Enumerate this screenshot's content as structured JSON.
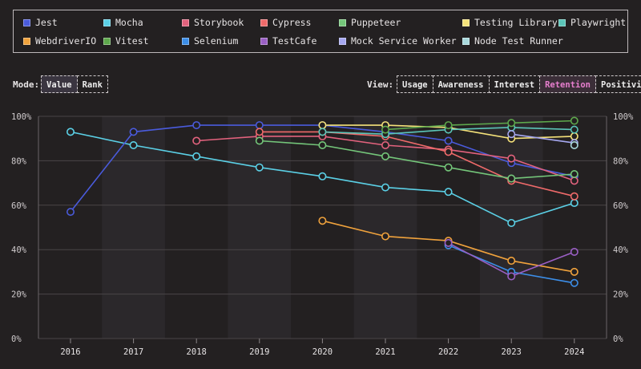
{
  "legend": [
    {
      "name": "Jest",
      "color": "#4a5bdc"
    },
    {
      "name": "Mocha",
      "color": "#5bd0e6"
    },
    {
      "name": "Storybook",
      "color": "#e2627d"
    },
    {
      "name": "Cypress",
      "color": "#ef6a6a"
    },
    {
      "name": "Puppeteer",
      "color": "#74c67a"
    },
    {
      "name": "Testing Library",
      "color": "#f5e27a"
    },
    {
      "name": "Playwright",
      "color": "#5bc5b8"
    },
    {
      "name": "WebdriverIO",
      "color": "#f0a23c"
    },
    {
      "name": "Vitest",
      "color": "#5ea84c"
    },
    {
      "name": "Selenium",
      "color": "#3c8ee8"
    },
    {
      "name": "TestCafe",
      "color": "#9a5fc4"
    },
    {
      "name": "Mock Service Worker",
      "color": "#a6a8f0"
    },
    {
      "name": "Node Test Runner",
      "color": "#a8d8dc"
    }
  ],
  "controls": {
    "mode_label": "Mode:",
    "mode_options": [
      "Value",
      "Rank"
    ],
    "mode_selected": "Value",
    "view_label": "View:",
    "view_options": [
      "Usage",
      "Awareness",
      "Interest",
      "Retention",
      "Positivity"
    ],
    "view_selected": "Retention"
  },
  "chart_data": {
    "type": "line",
    "x": [
      2016,
      2017,
      2018,
      2019,
      2020,
      2021,
      2022,
      2023,
      2024
    ],
    "y_ticks": [
      "0%",
      "20%",
      "40%",
      "60%",
      "80%",
      "100%"
    ],
    "ylim": [
      0,
      100
    ],
    "grid": true,
    "series": [
      {
        "name": "Mocha",
        "color": "#5bd0e6",
        "points": [
          [
            2016,
            93
          ],
          [
            2017,
            87
          ],
          [
            2018,
            82
          ],
          [
            2019,
            77
          ],
          [
            2020,
            73
          ],
          [
            2021,
            68
          ],
          [
            2022,
            66
          ],
          [
            2023,
            52
          ],
          [
            2024,
            61
          ]
        ]
      },
      {
        "name": "Jest",
        "color": "#4a5bdc",
        "points": [
          [
            2016,
            57
          ],
          [
            2017,
            93
          ],
          [
            2018,
            96
          ],
          [
            2019,
            96
          ],
          [
            2020,
            96
          ],
          [
            2021,
            93
          ],
          [
            2022,
            89
          ],
          [
            2023,
            79
          ],
          [
            2024,
            73
          ]
        ]
      },
      {
        "name": "Storybook",
        "color": "#e2627d",
        "points": [
          [
            2018,
            89
          ],
          [
            2019,
            91
          ],
          [
            2020,
            91
          ],
          [
            2021,
            87
          ],
          [
            2022,
            85
          ],
          [
            2023,
            81
          ],
          [
            2024,
            71
          ]
        ]
      },
      {
        "name": "Cypress",
        "color": "#ef6a6a",
        "points": [
          [
            2019,
            93
          ],
          [
            2020,
            93
          ],
          [
            2021,
            91
          ],
          [
            2022,
            84
          ],
          [
            2023,
            71
          ],
          [
            2024,
            64
          ]
        ]
      },
      {
        "name": "Puppeteer",
        "color": "#74c67a",
        "points": [
          [
            2019,
            89
          ],
          [
            2020,
            87
          ],
          [
            2021,
            82
          ],
          [
            2022,
            77
          ],
          [
            2023,
            72
          ],
          [
            2024,
            74
          ]
        ]
      },
      {
        "name": "Testing Library",
        "color": "#f5e27a",
        "points": [
          [
            2020,
            96
          ],
          [
            2021,
            96
          ],
          [
            2022,
            95
          ],
          [
            2023,
            90
          ],
          [
            2024,
            91
          ]
        ]
      },
      {
        "name": "Playwright",
        "color": "#5bc5b8",
        "points": [
          [
            2020,
            93
          ],
          [
            2021,
            92
          ],
          [
            2022,
            94
          ],
          [
            2023,
            95
          ],
          [
            2024,
            94
          ]
        ]
      },
      {
        "name": "Vitest",
        "color": "#5ea84c",
        "points": [
          [
            2021,
            94
          ],
          [
            2022,
            96
          ],
          [
            2023,
            97
          ],
          [
            2024,
            98
          ]
        ]
      },
      {
        "name": "WebdriverIO",
        "color": "#f0a23c",
        "points": [
          [
            2020,
            53
          ],
          [
            2021,
            46
          ],
          [
            2022,
            44
          ],
          [
            2023,
            35
          ],
          [
            2024,
            30
          ]
        ]
      },
      {
        "name": "Selenium",
        "color": "#3c8ee8",
        "points": [
          [
            2022,
            42
          ],
          [
            2023,
            30
          ],
          [
            2024,
            25
          ]
        ]
      },
      {
        "name": "TestCafe",
        "color": "#9a5fc4",
        "points": [
          [
            2022,
            43
          ],
          [
            2023,
            28
          ],
          [
            2024,
            39
          ]
        ]
      },
      {
        "name": "Mock Service Worker",
        "color": "#a6a8f0",
        "points": [
          [
            2023,
            92
          ],
          [
            2024,
            88
          ]
        ]
      },
      {
        "name": "Node Test Runner",
        "color": "#a8d8dc",
        "points": [
          [
            2024,
            87
          ]
        ]
      }
    ]
  }
}
